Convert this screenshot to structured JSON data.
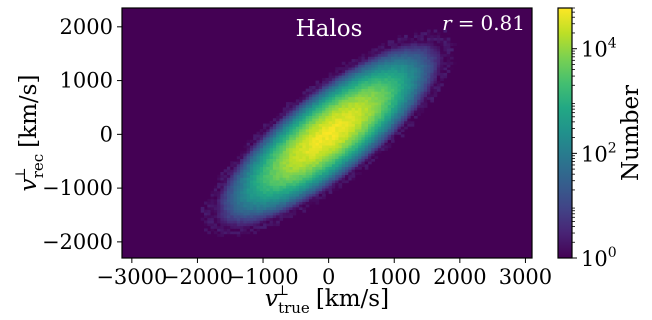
{
  "chart_data": {
    "type": "heatmap",
    "title": "Halos",
    "annotation": {
      "symbol": "r",
      "operator": "=",
      "value": "0.81"
    },
    "xlabel": {
      "base": "v",
      "sup": "⊥",
      "sub": "true",
      "unit": "[km/s]"
    },
    "ylabel": {
      "base": "v",
      "sup": "⊥",
      "sub": "rec",
      "unit": "[km/s]"
    },
    "xlim": [
      -3150,
      3100
    ],
    "ylim": [
      -2300,
      2350
    ],
    "x_ticks": [
      {
        "value": -3000,
        "label": "−3000"
      },
      {
        "value": -2000,
        "label": "−2000"
      },
      {
        "value": -1000,
        "label": "−1000"
      },
      {
        "value": 0,
        "label": "0"
      },
      {
        "value": 1000,
        "label": "1000"
      },
      {
        "value": 2000,
        "label": "2000"
      },
      {
        "value": 3000,
        "label": "3000"
      }
    ],
    "y_ticks": [
      {
        "value": 2000,
        "label": "2000"
      },
      {
        "value": 1000,
        "label": "1000"
      },
      {
        "value": 0,
        "label": "0"
      },
      {
        "value": -1000,
        "label": "−1000"
      },
      {
        "value": -2000,
        "label": "−2000"
      }
    ],
    "colorbar": {
      "label": "Number",
      "scale": "log",
      "range": [
        1,
        60000
      ],
      "ticks": [
        {
          "value": 1,
          "base": "10",
          "exp": "0"
        },
        {
          "value": 100,
          "base": "10",
          "exp": "2"
        },
        {
          "value": 10000,
          "base": "10",
          "exp": "4"
        }
      ],
      "colormap": "viridis"
    },
    "distribution": {
      "description_type": "bivariate_gaussian",
      "mean": [
        0,
        0
      ],
      "sigma_x": 380,
      "sigma_y": 380,
      "correlation": 0.81,
      "peak_count": 50000,
      "bin_size": 50
    },
    "background_color": "#440154"
  }
}
